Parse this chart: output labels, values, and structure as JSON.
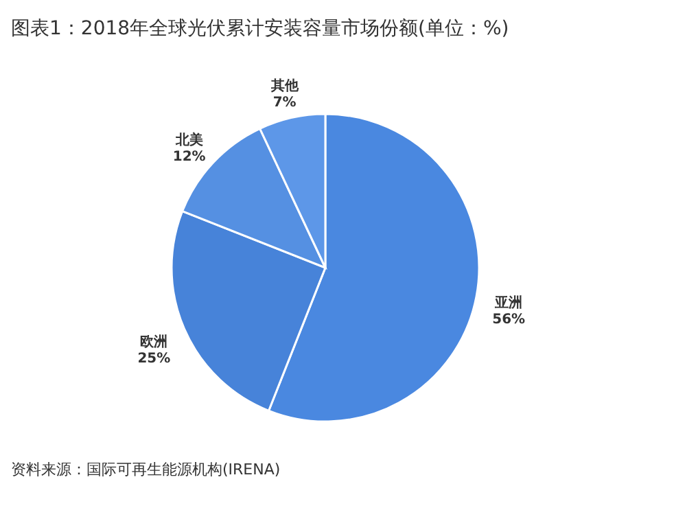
{
  "chart_data": {
    "type": "pie",
    "title": "图表1：2018年全球光伏累计安装容量市场份额(单位：%)",
    "categories": [
      "亚洲",
      "欧洲",
      "北美",
      "其他"
    ],
    "values": [
      56,
      25,
      12,
      7
    ],
    "value_labels": [
      "56%",
      "25%",
      "12%",
      "7%"
    ],
    "colors": [
      "#4a88e0",
      "#4783d9",
      "#5590e2",
      "#5d97e8"
    ],
    "annotations": [
      "资料来源：国际可再生能源机构(IRENA)"
    ]
  }
}
